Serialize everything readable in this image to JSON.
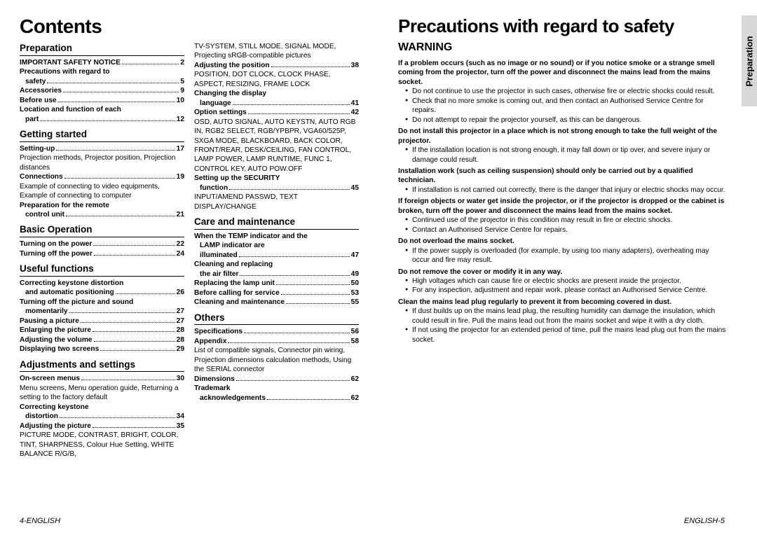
{
  "left": {
    "title": "Contents",
    "footer": "4-ENGLISH",
    "sections": [
      {
        "head": "Preparation",
        "items": [
          {
            "label": "IMPORTANT SAFETY NOTICE",
            "page": "2"
          },
          {
            "label": "Precautions with regard to",
            "cont": "safety",
            "page": "5"
          },
          {
            "label": "Accessories",
            "page": "9"
          },
          {
            "label": "Before use",
            "page": "10"
          },
          {
            "label": "Location and function of each",
            "cont": "part",
            "page": "12"
          }
        ]
      },
      {
        "head": "Getting started",
        "items": [
          {
            "label": "Setting-up",
            "page": "17",
            "desc": "Projection methods, Projector position, Projection distances"
          },
          {
            "label": "Connections",
            "page": "19",
            "desc": "Example of connecting to video equipments, Example of connecting to computer"
          },
          {
            "label": "Preparation for the remote",
            "cont": "control unit",
            "page": "21"
          }
        ]
      },
      {
        "head": "Basic Operation",
        "items": [
          {
            "label": "Turning on the power",
            "page": "22"
          },
          {
            "label": "Turning off the power",
            "page": "24"
          }
        ]
      },
      {
        "head": "Useful functions",
        "items": [
          {
            "label": "Correcting keystone distortion",
            "cont": "and automatic positioning",
            "page": "26"
          },
          {
            "label": "Turning off the picture and sound",
            "cont": "momentarily",
            "page": "27"
          },
          {
            "label": "Pausing a picture",
            "page": "27"
          },
          {
            "label": "Enlarging the picture",
            "page": "28"
          },
          {
            "label": "Adjusting the volume",
            "page": "28"
          },
          {
            "label": "Displaying two screens",
            "page": "29"
          }
        ]
      },
      {
        "head": "Adjustments and settings",
        "items": [
          {
            "label": "On-screen menus",
            "page": "30",
            "desc": "Menu screens, Menu operation guide, Returning a setting to the factory default"
          },
          {
            "label": "Correcting keystone",
            "cont": "distortion",
            "page": "34"
          },
          {
            "label": "Adjusting the picture",
            "page": "35",
            "desc": "PICTURE MODE, CONTRAST, BRIGHT, COLOR, TINT, SHARPNESS, Colour Hue Setting, WHITE BALANCE R/G/B,"
          }
        ]
      }
    ],
    "col2": [
      {
        "desc": "TV-SYSTEM, STILL MODE, SIGNAL MODE, Projecting sRGB-compatible pictures"
      },
      {
        "label": "Adjusting the position",
        "page": "38",
        "desc": "POSITION, DOT CLOCK, CLOCK PHASE, ASPECT, RESIZING, FRAME LOCK"
      },
      {
        "label": "Changing the display",
        "cont": "language",
        "page": "41"
      },
      {
        "label": "Option settings",
        "page": "42",
        "desc": "OSD, AUTO SIGNAL, AUTO KEYSTN, AUTO RGB IN, RGB2 SELECT, RGB/YPBPR, VGA60/525P, SXGA MODE, BLACKBOARD, BACK COLOR, FRONT/REAR, DESK/CEILING, FAN CONTROL, LAMP POWER, LAMP RUNTIME, FUNC 1, CONTROL KEY, AUTO POW.OFF"
      },
      {
        "label": "Setting up the SECURITY",
        "cont": "function",
        "page": "45",
        "desc": "INPUT/AMEND PASSWD, TEXT DISPLAY/CHANGE"
      },
      {
        "sectionHead": "Care and maintenance"
      },
      {
        "label": "When the TEMP indicator and the",
        "cont2": "LAMP indicator are",
        "cont": "illuminated",
        "page": "47"
      },
      {
        "label": "Cleaning and replacing",
        "cont": "the air filter",
        "page": "49"
      },
      {
        "label": "Replacing the lamp unit",
        "page": "50"
      },
      {
        "label": "Before calling for service",
        "page": "53"
      },
      {
        "label": "Cleaning and maintenance",
        "page": "55"
      },
      {
        "sectionHead": "Others"
      },
      {
        "label": "Specifications",
        "page": "56"
      },
      {
        "label": "Appendix",
        "page": "58",
        "desc": "List of compatible signals, Connector pin wiring, Projection dimensions calculation methods, Using the SERIAL connector"
      },
      {
        "label": "Dimensions",
        "page": "62"
      },
      {
        "label": "Trademark",
        "cont": "acknowledgements",
        "page": "62"
      }
    ]
  },
  "right": {
    "title": "Precautions with regard to safety",
    "warning": "WARNING",
    "sideTab": "Preparation",
    "footer": "ENGLISH-5",
    "blocks": [
      {
        "head": "If a problem occurs (such as no image or no sound) or if you notice smoke or a strange smell coming from the projector, turn off the power and disconnect the mains lead from the mains socket.",
        "bullets": [
          "Do not continue to use the projector in such cases, otherwise fire or electric shocks could result.",
          "Check that no more smoke is coming out, and then contact an Authorised Service Centre for repairs.",
          "Do not attempt to repair the projector yourself, as this can be dangerous."
        ]
      },
      {
        "head": "Do not install this projector in a place which is not strong enough to take the full weight of the projector.",
        "bullets": [
          "If the installation location is not strong enough, it may fall down or tip over, and severe injury or damage could result."
        ]
      },
      {
        "head": "Installation work (such as ceiling suspension) should only be carried out by a qualified technician.",
        "bullets": [
          "If installation is not carried out correctly, there is the danger that injury or electric shocks may occur."
        ]
      },
      {
        "head": "If foreign objects or water get inside the projector, or if the projector is dropped or the cabinet is broken, turn off the power and disconnect the mains lead from the mains socket.",
        "bullets": [
          "Continued use of the projector in this condition may result in fire or electric shocks.",
          "Contact an Authorised Service Centre for repairs."
        ]
      },
      {
        "head": "Do not overload the mains socket.",
        "bullets": [
          "If the power supply is overloaded (for example, by using too many adapters), overheating may occur and fire may result."
        ]
      },
      {
        "head": "Do not remove the cover or modify it in any way.",
        "bullets": [
          "High voltages which can cause fire or electric shocks are present inside the projector.",
          "For any inspection, adjustment and repair work, please contact an Authorised Service Centre."
        ]
      },
      {
        "head": "Clean the mains lead plug regularly to prevent it from becoming covered in dust.",
        "bullets": [
          "If dust builds up on the mains lead plug, the resulting humidity can damage the insulation, which could result in fire. Pull the mains lead out from the mains socket and wipe it with a dry cloth.",
          "If not using the projector for an extended period of time, pull the mains lead plug out from the mains socket."
        ]
      }
    ]
  }
}
